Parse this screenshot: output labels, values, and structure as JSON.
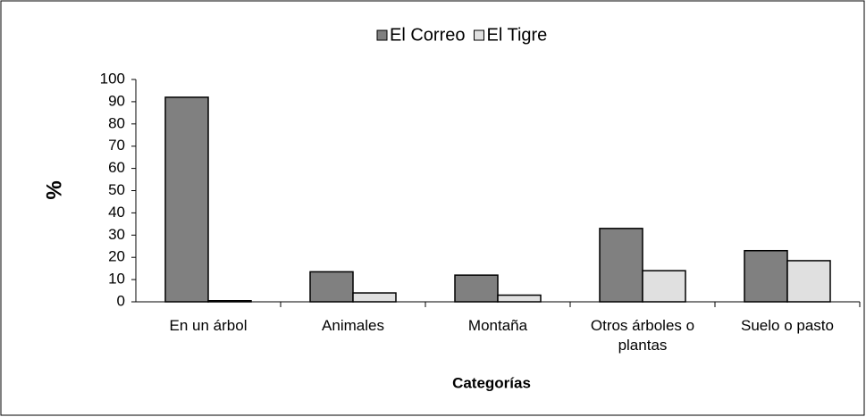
{
  "chart_data": {
    "type": "bar",
    "x_label": "Categorías",
    "y_label": "%",
    "categories": [
      "En un árbol",
      "Animales",
      "Montaña",
      "Otros árboles o plantas",
      "Suelo o pasto"
    ],
    "series": [
      {
        "name": "El Correo",
        "color": "#808080",
        "values": [
          92,
          13.5,
          12,
          33,
          23
        ]
      },
      {
        "name": "El Tigre",
        "color": "#e0e0e0",
        "values": [
          0.5,
          4,
          3,
          14,
          18.5
        ]
      }
    ],
    "ylim": [
      0,
      100
    ],
    "yticks": [
      0,
      10,
      20,
      30,
      40,
      50,
      60,
      70,
      80,
      90,
      100
    ],
    "legend": "top"
  }
}
